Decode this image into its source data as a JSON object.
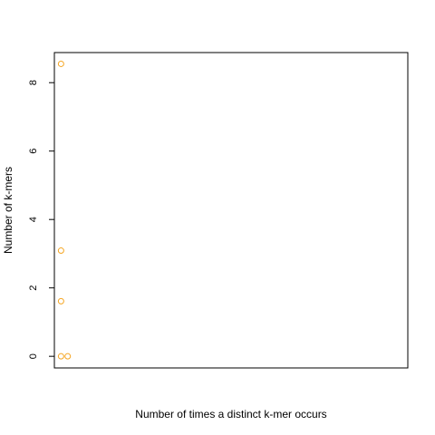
{
  "chart_data": {
    "type": "scatter",
    "title": "",
    "xlabel": "Number of times a distinct k-mer occurs",
    "ylabel": "Number of k-mers",
    "xlim": [
      1,
      54
    ],
    "ylim": [
      -0.34,
      8.88
    ],
    "x_ticks_shown": false,
    "y_ticks": [
      0,
      2,
      4,
      6,
      8
    ],
    "y_tick_labels": [
      "0",
      "2",
      "4",
      "6",
      "8"
    ],
    "grid": false,
    "legend": "none",
    "point_color": "#f5a623",
    "series": [
      {
        "points": [
          {
            "x": 2,
            "y": 8.55
          },
          {
            "x": 2,
            "y": 3.09
          },
          {
            "x": 2,
            "y": 1.61
          },
          {
            "x": 2,
            "y": 0
          },
          {
            "x": 3,
            "y": 0
          }
        ]
      }
    ]
  }
}
